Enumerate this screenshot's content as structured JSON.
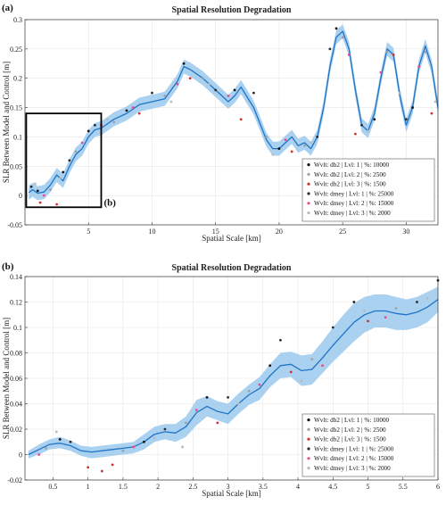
{
  "chart_data": [
    {
      "type": "line",
      "panel_label": "(a)",
      "title": "Spatial Resolution Degradation",
      "xlabel": "Spatial Scale [km]",
      "ylabel": "SLR Between Model and Control [m]",
      "xlim": [
        0,
        32.5
      ],
      "ylim": [
        -0.05,
        0.3
      ],
      "xticks": [
        5,
        10,
        15,
        20,
        25,
        30
      ],
      "yticks": [
        -0.05,
        0,
        0.05,
        0.1,
        0.15,
        0.2,
        0.25,
        0.3
      ],
      "ytick_labels": [
        "-0.05",
        "0",
        "0.05",
        "0.1",
        "0.15",
        "0.2",
        "0.25",
        "0.3"
      ],
      "grid": true,
      "legend_position": "bottom-right",
      "inset_box_label": "(b)",
      "inset_box": {
        "x": [
          0.1,
          6
        ],
        "y": [
          -0.02,
          0.14
        ]
      },
      "fit_line": {
        "x": [
          0.3,
          0.6,
          1,
          1.5,
          2,
          2.5,
          3,
          3.5,
          4,
          4.5,
          5,
          5.5,
          6,
          7,
          8,
          9,
          10,
          11,
          12,
          12.5,
          13,
          14,
          15,
          16,
          16.5,
          17,
          18,
          19,
          19.5,
          20,
          20.5,
          21,
          21.5,
          22,
          22.5,
          23,
          23.5,
          24,
          24.5,
          25,
          25.5,
          26,
          26.5,
          27,
          27.5,
          28,
          28.5,
          29,
          29.5,
          30,
          30.5,
          31,
          31.5,
          32,
          32.5
        ],
        "y": [
          0.005,
          0.01,
          0.004,
          0.006,
          0.018,
          0.035,
          0.025,
          0.05,
          0.07,
          0.08,
          0.1,
          0.112,
          0.115,
          0.13,
          0.14,
          0.155,
          0.16,
          0.165,
          0.195,
          0.22,
          0.215,
          0.2,
          0.18,
          0.16,
          0.17,
          0.185,
          0.15,
          0.095,
          0.08,
          0.08,
          0.09,
          0.1,
          0.085,
          0.09,
          0.08,
          0.1,
          0.15,
          0.22,
          0.27,
          0.28,
          0.25,
          0.18,
          0.12,
          0.11,
          0.14,
          0.2,
          0.25,
          0.24,
          0.17,
          0.12,
          0.15,
          0.22,
          0.255,
          0.22,
          0.15
        ]
      },
      "band_halfwidth": 0.012,
      "series": [
        {
          "name": "Wvlt: db2 | Lvl: 1 | %: 10000",
          "color": "#111111",
          "marker": "dot",
          "points": [
            [
              1,
              0.008
            ],
            [
              3,
              0.04
            ],
            [
              5,
              0.11
            ],
            [
              8,
              0.145
            ],
            [
              12.5,
              0.225
            ],
            [
              16.5,
              0.18
            ],
            [
              20,
              0.08
            ],
            [
              24.5,
              0.285
            ],
            [
              27.5,
              0.13
            ],
            [
              30.5,
              0.15
            ]
          ]
        },
        {
          "name": "Wvlt: db2 | Lvl: 2 | %: 2500",
          "color": "#a0a0a0",
          "marker": "dot",
          "points": [
            [
              2,
              0.01
            ],
            [
              4,
              0.075
            ],
            [
              7,
              0.125
            ],
            [
              11,
              0.17
            ],
            [
              14,
              0.2
            ],
            [
              19,
              0.1
            ],
            [
              22,
              0.085
            ],
            [
              25,
              0.27
            ],
            [
              28.5,
              0.245
            ],
            [
              31.5,
              0.245
            ]
          ]
        },
        {
          "name": "Wvlt: db2 | Lvl: 3 | %: 1500",
          "color": "#d03030",
          "marker": "dot",
          "points": [
            [
              1.2,
              -0.012
            ],
            [
              2.5,
              -0.015
            ],
            [
              6,
              0.12
            ],
            [
              9,
              0.14
            ],
            [
              13,
              0.2
            ],
            [
              17,
              0.13
            ],
            [
              21,
              0.075
            ],
            [
              26,
              0.105
            ],
            [
              29,
              0.24
            ],
            [
              32,
              0.14
            ]
          ]
        },
        {
          "name": "Wvlt: dmey | Lvl: 1 | %: 25000",
          "color": "#2a2a2a",
          "marker": "dot",
          "points": [
            [
              0.5,
              0.015
            ],
            [
              3.5,
              0.06
            ],
            [
              5.5,
              0.12
            ],
            [
              10,
              0.175
            ],
            [
              15,
              0.18
            ],
            [
              18,
              0.175
            ],
            [
              23,
              0.1
            ],
            [
              24,
              0.25
            ],
            [
              26.5,
              0.12
            ],
            [
              30,
              0.13
            ]
          ]
        },
        {
          "name": "Wvlt: dmey | Lvl: 2 | %: 15000",
          "color": "#e84a8a",
          "marker": "dot",
          "points": [
            [
              1.5,
              0.0
            ],
            [
              4.5,
              0.09
            ],
            [
              8.5,
              0.15
            ],
            [
              12,
              0.19
            ],
            [
              16,
              0.17
            ],
            [
              20.5,
              0.095
            ],
            [
              25.5,
              0.24
            ],
            [
              28,
              0.21
            ],
            [
              31,
              0.22
            ]
          ]
        },
        {
          "name": "Wvlt: dmey | Lvl: 3 | %: 2000",
          "color": "#b9b9b9",
          "marker": "dot",
          "points": [
            [
              0.8,
              0.02
            ],
            [
              2.8,
              0.03
            ],
            [
              6.5,
              0.13
            ],
            [
              11.5,
              0.16
            ],
            [
              14.5,
              0.19
            ],
            [
              19.5,
              0.07
            ],
            [
              22.5,
              0.09
            ],
            [
              27,
              0.11
            ],
            [
              29.5,
              0.175
            ],
            [
              32.3,
              0.16
            ]
          ]
        }
      ]
    },
    {
      "type": "line",
      "panel_label": "(b)",
      "title": "Spatial Resolution Degradation",
      "xlabel": "Spatial Scale [km]",
      "ylabel": "SLR Between Model and Control [m]",
      "xlim": [
        0.1,
        6
      ],
      "ylim": [
        -0.02,
        0.14
      ],
      "xticks": [
        0.5,
        1,
        1.5,
        2,
        2.5,
        3,
        3.5,
        4,
        4.5,
        5,
        5.5,
        6
      ],
      "yticks": [
        -0.02,
        0,
        0.02,
        0.04,
        0.06,
        0.08,
        0.1,
        0.12,
        0.14
      ],
      "ytick_labels": [
        "-0.02",
        "0",
        "0.02",
        "0.04",
        "0.06",
        "0.08",
        "0.1",
        "0.12",
        "0.14"
      ],
      "grid": true,
      "legend_position": "bottom-right",
      "fit_line": {
        "x": [
          0.15,
          0.3,
          0.45,
          0.6,
          0.75,
          0.9,
          1.05,
          1.2,
          1.35,
          1.5,
          1.65,
          1.8,
          1.95,
          2.1,
          2.25,
          2.4,
          2.55,
          2.7,
          2.85,
          3.0,
          3.15,
          3.3,
          3.45,
          3.6,
          3.75,
          3.9,
          4.05,
          4.2,
          4.35,
          4.5,
          4.65,
          4.8,
          4.95,
          5.1,
          5.25,
          5.4,
          5.55,
          5.7,
          5.85,
          6.0
        ],
        "y": [
          0.0,
          0.004,
          0.008,
          0.009,
          0.007,
          0.003,
          0.002,
          0.003,
          0.004,
          0.005,
          0.006,
          0.01,
          0.016,
          0.018,
          0.017,
          0.022,
          0.033,
          0.038,
          0.034,
          0.032,
          0.04,
          0.047,
          0.052,
          0.062,
          0.07,
          0.071,
          0.066,
          0.067,
          0.076,
          0.086,
          0.095,
          0.104,
          0.11,
          0.113,
          0.113,
          0.111,
          0.11,
          0.112,
          0.116,
          0.122
        ]
      },
      "band_upper": [
        0.003,
        0.008,
        0.012,
        0.014,
        0.011,
        0.007,
        0.006,
        0.007,
        0.008,
        0.009,
        0.01,
        0.016,
        0.022,
        0.024,
        0.024,
        0.03,
        0.043,
        0.046,
        0.042,
        0.04,
        0.048,
        0.055,
        0.061,
        0.071,
        0.08,
        0.081,
        0.078,
        0.079,
        0.089,
        0.1,
        0.11,
        0.119,
        0.124,
        0.126,
        0.126,
        0.124,
        0.122,
        0.124,
        0.128,
        0.132
      ],
      "band_lower": [
        -0.003,
        0.0,
        0.004,
        0.005,
        0.003,
        -0.001,
        -0.003,
        -0.002,
        -0.001,
        0.0,
        0.001,
        0.004,
        0.01,
        0.012,
        0.01,
        0.014,
        0.023,
        0.03,
        0.027,
        0.024,
        0.032,
        0.039,
        0.043,
        0.053,
        0.06,
        0.061,
        0.054,
        0.055,
        0.064,
        0.073,
        0.081,
        0.089,
        0.096,
        0.1,
        0.1,
        0.098,
        0.098,
        0.1,
        0.104,
        0.112
      ],
      "series": [
        {
          "name": "Wvlt: db2 | Lvl: 1 | %: 10000",
          "color": "#111111",
          "marker": "dot",
          "points": [
            [
              0.6,
              0.012
            ],
            [
              1.8,
              0.01
            ],
            [
              2.7,
              0.045
            ],
            [
              3.6,
              0.07
            ],
            [
              4.8,
              0.12
            ],
            [
              6.0,
              0.137
            ]
          ]
        },
        {
          "name": "Wvlt: db2 | Lvl: 2 | %: 2500",
          "color": "#a0a0a0",
          "marker": "dot",
          "points": [
            [
              0.4,
              0.005
            ],
            [
              1.5,
              0.003
            ],
            [
              2.4,
              0.025
            ],
            [
              3.3,
              0.05
            ],
            [
              4.2,
              0.075
            ],
            [
              5.4,
              0.115
            ]
          ]
        },
        {
          "name": "Wvlt: db2 | Lvl: 3 | %: 1500",
          "color": "#d03030",
          "marker": "dot",
          "points": [
            [
              1.0,
              -0.01
            ],
            [
              1.2,
              -0.013
            ],
            [
              1.35,
              -0.008
            ],
            [
              2.85,
              0.025
            ],
            [
              3.9,
              0.065
            ],
            [
              5.0,
              0.105
            ]
          ]
        },
        {
          "name": "Wvlt: dmey | Lvl: 1 | %: 25000",
          "color": "#2a2a2a",
          "marker": "dot",
          "points": [
            [
              0.75,
              0.01
            ],
            [
              2.1,
              0.02
            ],
            [
              3.0,
              0.045
            ],
            [
              3.75,
              0.09
            ],
            [
              4.5,
              0.1
            ],
            [
              5.7,
              0.12
            ]
          ]
        },
        {
          "name": "Wvlt: dmey | Lvl: 2 | %: 15000",
          "color": "#e84a8a",
          "marker": "dot",
          "points": [
            [
              0.3,
              0.0
            ],
            [
              1.65,
              0.006
            ],
            [
              2.55,
              0.035
            ],
            [
              3.45,
              0.055
            ],
            [
              4.35,
              0.07
            ],
            [
              5.25,
              0.108
            ]
          ]
        },
        {
          "name": "Wvlt: dmey | Lvl: 3 | %: 2000",
          "color": "#b9b9b9",
          "marker": "dot",
          "points": [
            [
              0.55,
              0.018
            ],
            [
              1.95,
              0.013
            ],
            [
              2.35,
              0.006
            ],
            [
              3.15,
              0.04
            ],
            [
              4.05,
              0.058
            ],
            [
              4.95,
              0.113
            ],
            [
              5.85,
              0.123
            ]
          ]
        }
      ]
    }
  ]
}
